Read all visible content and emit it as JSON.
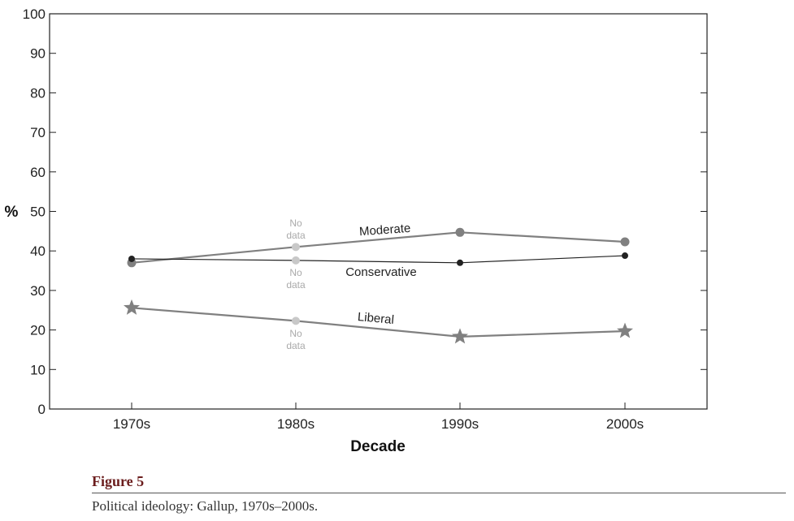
{
  "chart_data": {
    "type": "line",
    "categories": [
      "1970s",
      "1980s",
      "1990s",
      "2000s"
    ],
    "xlabel": "Decade",
    "ylabel": "%",
    "ylim": [
      0,
      100
    ],
    "yticks": [
      0,
      10,
      20,
      30,
      40,
      50,
      60,
      70,
      80,
      90,
      100
    ],
    "grid": false,
    "series": [
      {
        "name": "Moderate",
        "values": [
          37,
          41,
          44.7,
          42.3
        ],
        "color": "#808080",
        "marker": "circle",
        "no_data_index": 1
      },
      {
        "name": "Conservative",
        "values": [
          38,
          37.6,
          37,
          38.8
        ],
        "color": "#222222",
        "marker": "small-circle",
        "no_data_index": 1
      },
      {
        "name": "Liberal",
        "values": [
          25.6,
          22.3,
          18.3,
          19.7
        ],
        "color": "#808080",
        "marker": "star",
        "no_data_index": 1
      }
    ],
    "annotations": {
      "no_data_line1": "No",
      "no_data_line2": "data"
    }
  },
  "caption": {
    "figure_label": "Figure 5",
    "text": "Political ideology: Gallup, 1970s–2000s."
  }
}
